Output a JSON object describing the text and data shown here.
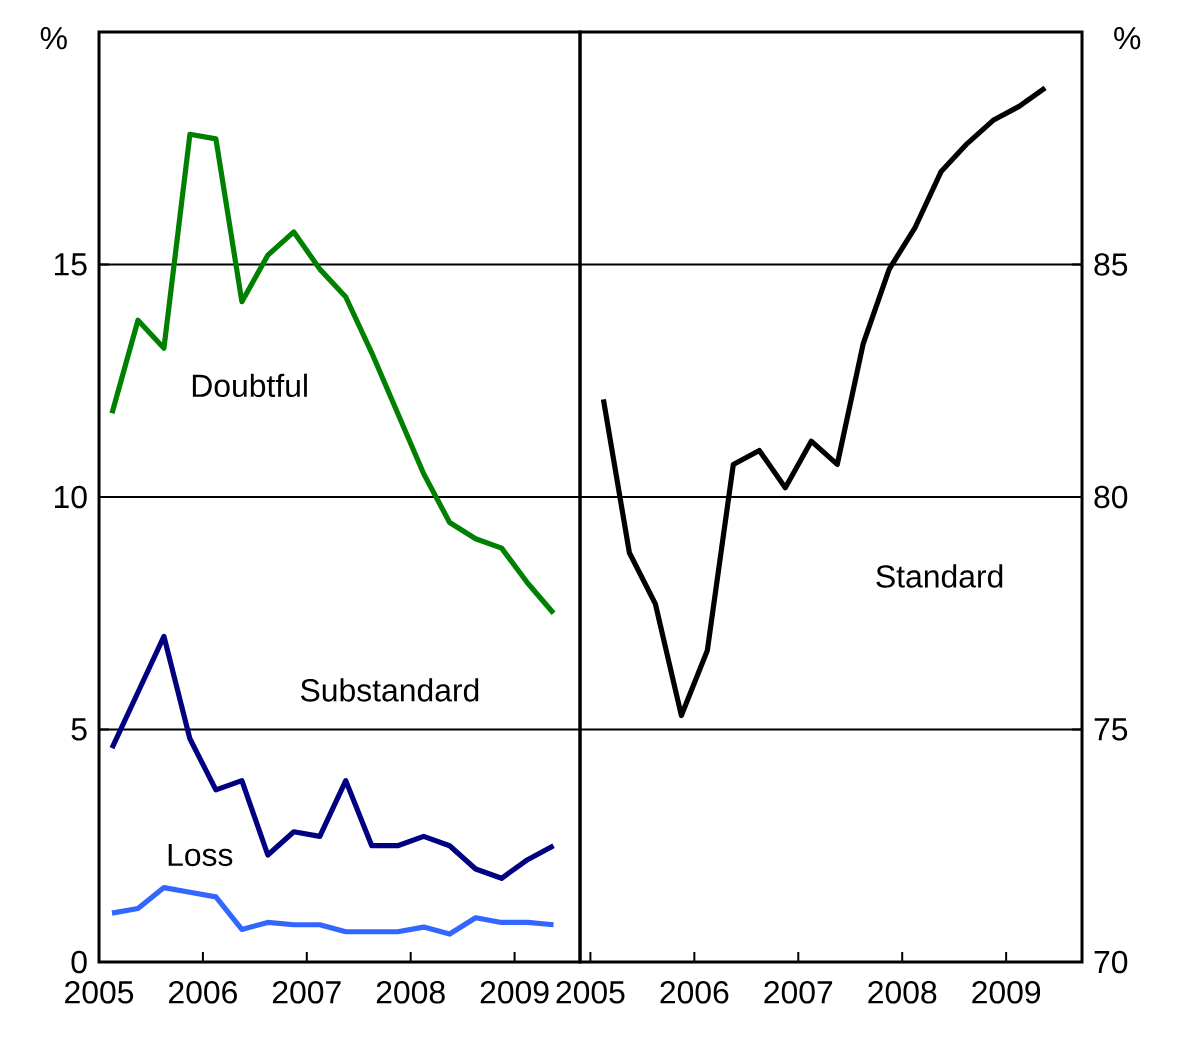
{
  "chart_data": [
    {
      "type": "line",
      "ylabel": "%",
      "ylim": [
        0,
        20
      ],
      "yticks": [
        0,
        5,
        10,
        15
      ],
      "xlim": [
        2005,
        2009.63
      ],
      "xticks": [
        2005,
        2006,
        2007,
        2008,
        2009
      ],
      "grid": "y",
      "line_style": "solid",
      "x": [
        2005.125,
        2005.375,
        2005.625,
        2005.875,
        2006.125,
        2006.375,
        2006.625,
        2006.875,
        2007.125,
        2007.375,
        2007.625,
        2007.875,
        2008.125,
        2008.375,
        2008.625,
        2008.875,
        2009.125,
        2009.375
      ],
      "series": [
        {
          "name": "Doubtful",
          "color": "#008000",
          "values": [
            11.8,
            13.8,
            13.2,
            17.8,
            17.7,
            14.2,
            15.2,
            15.7,
            14.9,
            14.3,
            13.1,
            11.8,
            10.5,
            9.45,
            9.1,
            8.9,
            8.15,
            7.5
          ]
        },
        {
          "name": "Substandard",
          "color": "#000080",
          "values": [
            4.6,
            5.8,
            7.0,
            4.8,
            3.7,
            3.9,
            2.3,
            2.8,
            2.7,
            3.9,
            2.5,
            2.5,
            2.7,
            2.5,
            2.0,
            1.8,
            2.2,
            2.5
          ]
        },
        {
          "name": "Loss",
          "color": "#3366ff",
          "values": [
            1.05,
            1.15,
            1.6,
            1.5,
            1.4,
            0.7,
            0.85,
            0.8,
            0.8,
            0.65,
            0.65,
            0.65,
            0.75,
            0.6,
            0.95,
            0.85,
            0.85,
            0.8
          ]
        }
      ]
    },
    {
      "type": "line",
      "y2label": "%",
      "y2lim": [
        70,
        90
      ],
      "y2ticks": [
        70,
        75,
        80,
        85
      ],
      "xlim": [
        2004.9,
        2009.73
      ],
      "xticks": [
        2005,
        2006,
        2007,
        2008,
        2009
      ],
      "grid": "y",
      "line_style": "solid",
      "x": [
        2005.125,
        2005.375,
        2005.625,
        2005.875,
        2006.125,
        2006.375,
        2006.625,
        2006.875,
        2007.125,
        2007.375,
        2007.625,
        2007.875,
        2008.125,
        2008.375,
        2008.625,
        2008.875,
        2009.125,
        2009.375
      ],
      "series": [
        {
          "name": "Standard",
          "color": "#000000",
          "axis": "y2",
          "values": [
            82.1,
            78.8,
            77.7,
            75.3,
            76.7,
            80.7,
            81.0,
            80.2,
            81.2,
            80.7,
            83.3,
            84.9,
            85.8,
            87.0,
            87.6,
            88.1,
            88.4,
            88.8
          ]
        }
      ]
    }
  ]
}
